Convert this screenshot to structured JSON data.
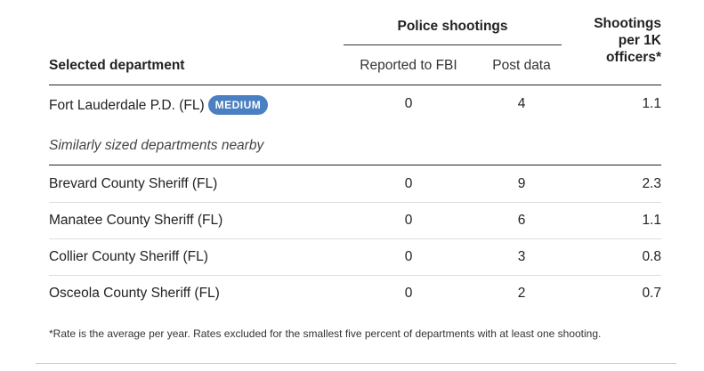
{
  "chart_data": {
    "type": "table",
    "group_header": "Police shootings",
    "columns": {
      "department": "Selected department",
      "reported_fbi": "Reported to FBI",
      "post_data": "Post data",
      "rate_line1": "Shootings",
      "rate_line2": "per 1K",
      "rate_line3": "officers*"
    },
    "selected": {
      "name": "Fort Lauderdale P.D. (FL)",
      "badge": "MEDIUM",
      "reported_fbi": "0",
      "post_data": "4",
      "rate": "1.1"
    },
    "subheading": "Similarly sized departments nearby",
    "rows": [
      {
        "name": "Brevard County Sheriff (FL)",
        "reported_fbi": "0",
        "post_data": "9",
        "rate": "2.3"
      },
      {
        "name": "Manatee County Sheriff (FL)",
        "reported_fbi": "0",
        "post_data": "6",
        "rate": "1.1"
      },
      {
        "name": "Collier County Sheriff (FL)",
        "reported_fbi": "0",
        "post_data": "3",
        "rate": "0.8"
      },
      {
        "name": "Osceola County Sheriff (FL)",
        "reported_fbi": "0",
        "post_data": "2",
        "rate": "0.7"
      }
    ],
    "footnote": "*Rate is the average per year. Rates excluded for the smallest five percent of departments with at least one shooting."
  },
  "colors": {
    "badge": "#4a7fc1"
  }
}
